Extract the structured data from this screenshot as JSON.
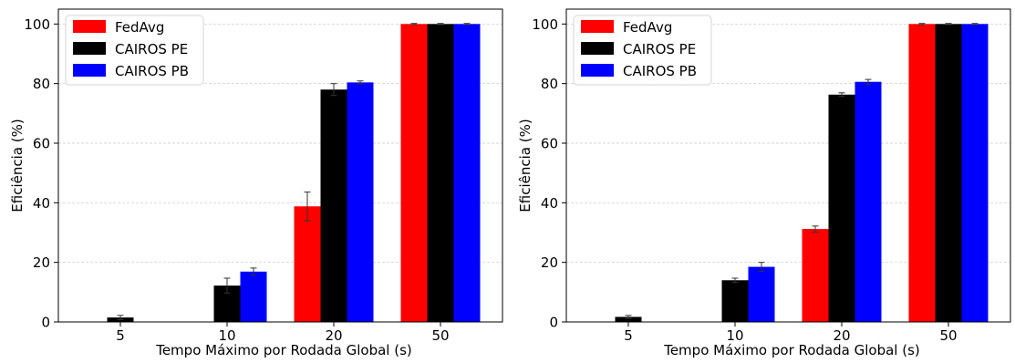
{
  "chart_data": [
    {
      "type": "bar",
      "categories": [
        "5",
        "10",
        "20",
        "50"
      ],
      "xlabel": "Tempo Máximo por Rodada Global (s)",
      "ylabel": "Eficiência (%)",
      "ylim": [
        0,
        105
      ],
      "yticks": [
        "0",
        "20",
        "40",
        "60",
        "80",
        "100"
      ],
      "grid": "horizontal dashed",
      "legend_position": "top-left",
      "series": [
        {
          "name": "FedAvg",
          "color": "#ff0000",
          "values": [
            0,
            0,
            38.8,
            100
          ],
          "errors": [
            0,
            0,
            4.8,
            0.2
          ]
        },
        {
          "name": "CAIROS PE",
          "color": "#000000",
          "values": [
            1.5,
            12.2,
            78.0,
            100
          ],
          "errors": [
            0.7,
            2.5,
            2.0,
            0.2
          ]
        },
        {
          "name": "CAIROS PB",
          "color": "#0000ff",
          "values": [
            0,
            16.9,
            80.4,
            100
          ],
          "errors": [
            0,
            1.2,
            0.5,
            0.2
          ]
        }
      ]
    },
    {
      "type": "bar",
      "categories": [
        "5",
        "10",
        "20",
        "50"
      ],
      "xlabel": "Tempo Máximo por Rodada Global (s)",
      "ylabel": "Eficiência (%)",
      "ylim": [
        0,
        105
      ],
      "yticks": [
        "0",
        "20",
        "40",
        "60",
        "80",
        "100"
      ],
      "grid": "horizontal dashed",
      "legend_position": "top-left",
      "series": [
        {
          "name": "FedAvg",
          "color": "#ff0000",
          "values": [
            0,
            0,
            31.2,
            100
          ],
          "errors": [
            0,
            0,
            1.0,
            0.2
          ]
        },
        {
          "name": "CAIROS PE",
          "color": "#000000",
          "values": [
            1.7,
            14.0,
            76.3,
            100
          ],
          "errors": [
            0.5,
            0.7,
            0.6,
            0.2
          ]
        },
        {
          "name": "CAIROS PB",
          "color": "#0000ff",
          "values": [
            0,
            18.5,
            80.6,
            100
          ],
          "errors": [
            0,
            1.5,
            0.8,
            0.2
          ]
        }
      ]
    }
  ]
}
